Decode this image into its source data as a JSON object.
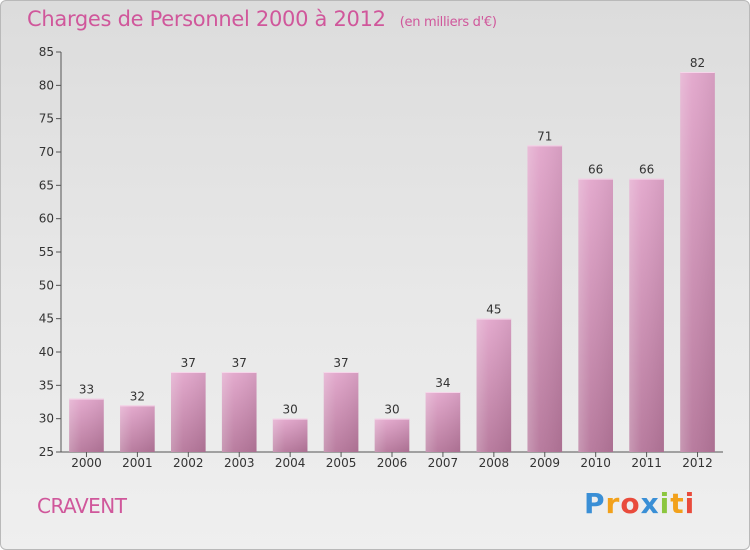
{
  "header": {
    "title": "Charges de Personnel 2000 à 2012",
    "subtitle": "(en milliers d'€)"
  },
  "commune": "CRAVENT",
  "brand": {
    "letters": [
      {
        "ch": "P",
        "color": "#3a8fd6"
      },
      {
        "ch": "r",
        "color": "#f2a11b"
      },
      {
        "ch": "o",
        "color": "#e94b3c"
      },
      {
        "ch": "x",
        "color": "#3a8fd6"
      },
      {
        "ch": "i",
        "color": "#8cc63f"
      },
      {
        "ch": "t",
        "color": "#f2a11b"
      },
      {
        "ch": "i",
        "color": "#e94b3c"
      }
    ]
  },
  "colors": {
    "bar_top": "#e2a6cb",
    "bar_bottom": "#b5769a",
    "title": "#d0579b"
  },
  "chart_data": {
    "type": "bar",
    "categories": [
      "2000",
      "2001",
      "2002",
      "2003",
      "2004",
      "2005",
      "2006",
      "2007",
      "2008",
      "2009",
      "2010",
      "2011",
      "2012"
    ],
    "values": [
      33,
      32,
      37,
      37,
      30,
      37,
      30,
      34,
      45,
      71,
      66,
      66,
      82
    ],
    "title": "Charges de Personnel 2000 à 2012",
    "xlabel": "",
    "ylabel": "",
    "ylim": [
      25,
      85
    ],
    "yticks": [
      25,
      30,
      35,
      40,
      45,
      50,
      55,
      60,
      65,
      70,
      75,
      80,
      85
    ],
    "grid": false,
    "data_labels": true
  }
}
